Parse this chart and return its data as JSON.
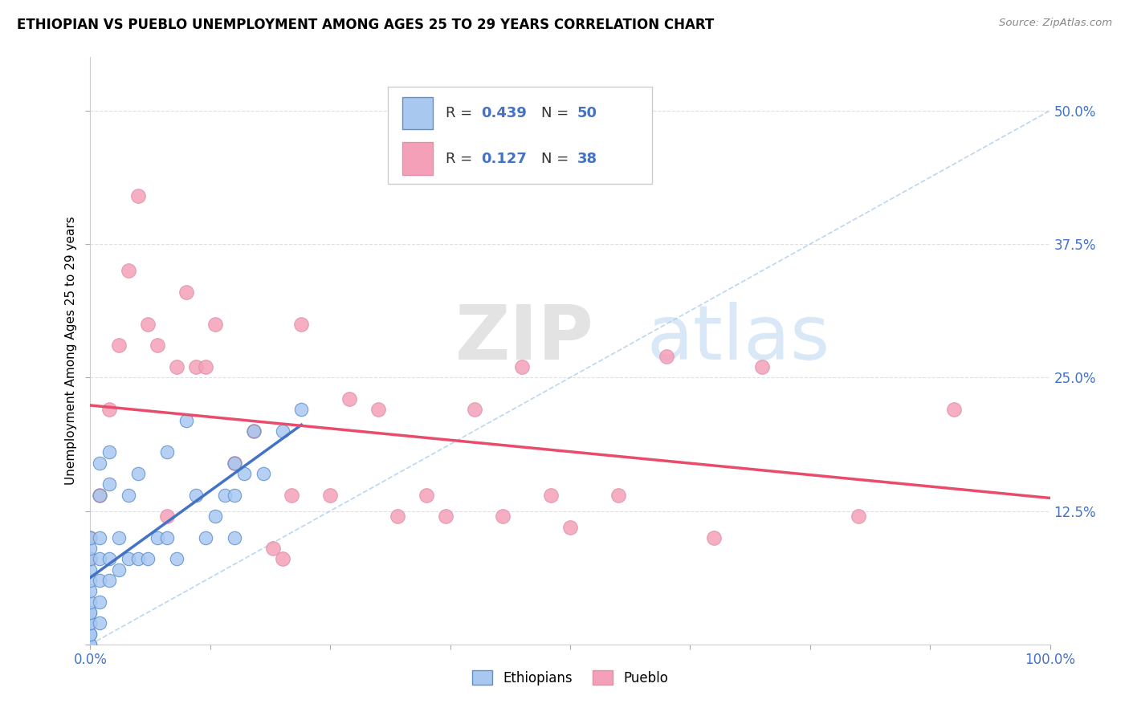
{
  "title": "ETHIOPIAN VS PUEBLO UNEMPLOYMENT AMONG AGES 25 TO 29 YEARS CORRELATION CHART",
  "source": "Source: ZipAtlas.com",
  "ylabel": "Unemployment Among Ages 25 to 29 years",
  "xlim": [
    0,
    100
  ],
  "ylim": [
    0,
    55
  ],
  "ytick_positions": [
    0,
    12.5,
    25.0,
    37.5,
    50.0
  ],
  "ytick_labels": [
    "",
    "12.5%",
    "25.0%",
    "37.5%",
    "50.0%"
  ],
  "xtick_positions": [
    0,
    12.5,
    25,
    37.5,
    50,
    62.5,
    75,
    87.5,
    100
  ],
  "xtick_labels": [
    "0.0%",
    "",
    "",
    "",
    "",
    "",
    "",
    "",
    "100.0%"
  ],
  "ethiopian_color": "#a8c8f0",
  "pueblo_color": "#f4a0b8",
  "trend_ethiopian_color": "#4472c4",
  "trend_pueblo_color": "#e84c6a",
  "r_ethiopian": 0.439,
  "n_ethiopian": 50,
  "r_pueblo": 0.127,
  "n_pueblo": 38,
  "watermark_zip": "ZIP",
  "watermark_atlas": "atlas",
  "legend_labels": [
    "Ethiopians",
    "Pueblo"
  ],
  "ethiopian_x": [
    0,
    0,
    0,
    0,
    0,
    0,
    0,
    0,
    0,
    0,
    0,
    0,
    0,
    0,
    0,
    1,
    1,
    1,
    1,
    1,
    1,
    1,
    2,
    2,
    2,
    2,
    3,
    3,
    4,
    4,
    5,
    5,
    6,
    7,
    8,
    8,
    9,
    10,
    11,
    12,
    13,
    14,
    15,
    15,
    15,
    16,
    17,
    18,
    20,
    22
  ],
  "ethiopian_y": [
    0,
    0,
    1,
    1,
    2,
    2,
    3,
    3,
    4,
    5,
    6,
    7,
    8,
    9,
    10,
    2,
    4,
    6,
    8,
    10,
    14,
    17,
    6,
    8,
    15,
    18,
    7,
    10,
    8,
    14,
    8,
    16,
    8,
    10,
    10,
    18,
    8,
    21,
    14,
    10,
    12,
    14,
    17,
    10,
    14,
    16,
    20,
    16,
    20,
    22
  ],
  "pueblo_x": [
    0,
    0,
    1,
    2,
    3,
    4,
    5,
    6,
    7,
    8,
    9,
    10,
    11,
    12,
    13,
    15,
    17,
    19,
    20,
    21,
    22,
    25,
    27,
    30,
    32,
    35,
    37,
    40,
    43,
    45,
    48,
    50,
    55,
    60,
    65,
    70,
    80,
    90
  ],
  "pueblo_y": [
    8,
    10,
    14,
    22,
    28,
    35,
    42,
    30,
    28,
    12,
    26,
    33,
    26,
    26,
    30,
    17,
    20,
    9,
    8,
    14,
    30,
    14,
    23,
    22,
    12,
    14,
    12,
    22,
    12,
    26,
    14,
    11,
    14,
    27,
    10,
    26,
    12,
    22
  ]
}
